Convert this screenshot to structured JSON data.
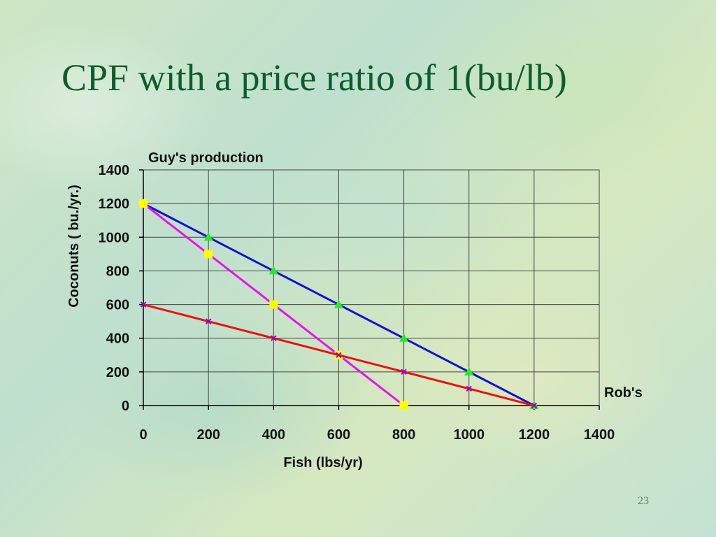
{
  "slide": {
    "title": "CPF with a price ratio of 1(bu/lb)",
    "page_number": "23"
  },
  "chart_data": {
    "type": "line",
    "title": "",
    "xlabel": "Fish (lbs/yr)",
    "ylabel": "Coconuts ( bu./yr.)",
    "xlim": [
      0,
      1400
    ],
    "ylim": [
      0,
      1400
    ],
    "x_ticks": [
      0,
      200,
      400,
      600,
      800,
      1000,
      1200,
      1400
    ],
    "y_ticks": [
      0,
      200,
      400,
      600,
      800,
      1000,
      1200,
      1400
    ],
    "grid": true,
    "annotations": [
      {
        "text": "Guy's production"
      },
      {
        "text": "Rob's"
      }
    ],
    "series": [
      {
        "color": "#1010d8",
        "marker": "triangle",
        "marker_color": "#22ee22",
        "points": [
          [
            0,
            1200
          ],
          [
            200,
            1000
          ],
          [
            400,
            800
          ],
          [
            600,
            600
          ],
          [
            800,
            400
          ],
          [
            1000,
            200
          ],
          [
            1200,
            0
          ]
        ]
      },
      {
        "color": "#ee10ee",
        "marker": "square",
        "marker_color": "#ffff00",
        "points": [
          [
            0,
            1200
          ],
          [
            200,
            900
          ],
          [
            400,
            600
          ],
          [
            600,
            300
          ],
          [
            800,
            0
          ]
        ]
      },
      {
        "color": "#ee1010",
        "marker": "x",
        "marker_color": "#9900cc",
        "points": [
          [
            0,
            600
          ],
          [
            200,
            500
          ],
          [
            400,
            400
          ],
          [
            600,
            300
          ],
          [
            800,
            200
          ],
          [
            1000,
            100
          ],
          [
            1200,
            0
          ]
        ]
      }
    ]
  }
}
